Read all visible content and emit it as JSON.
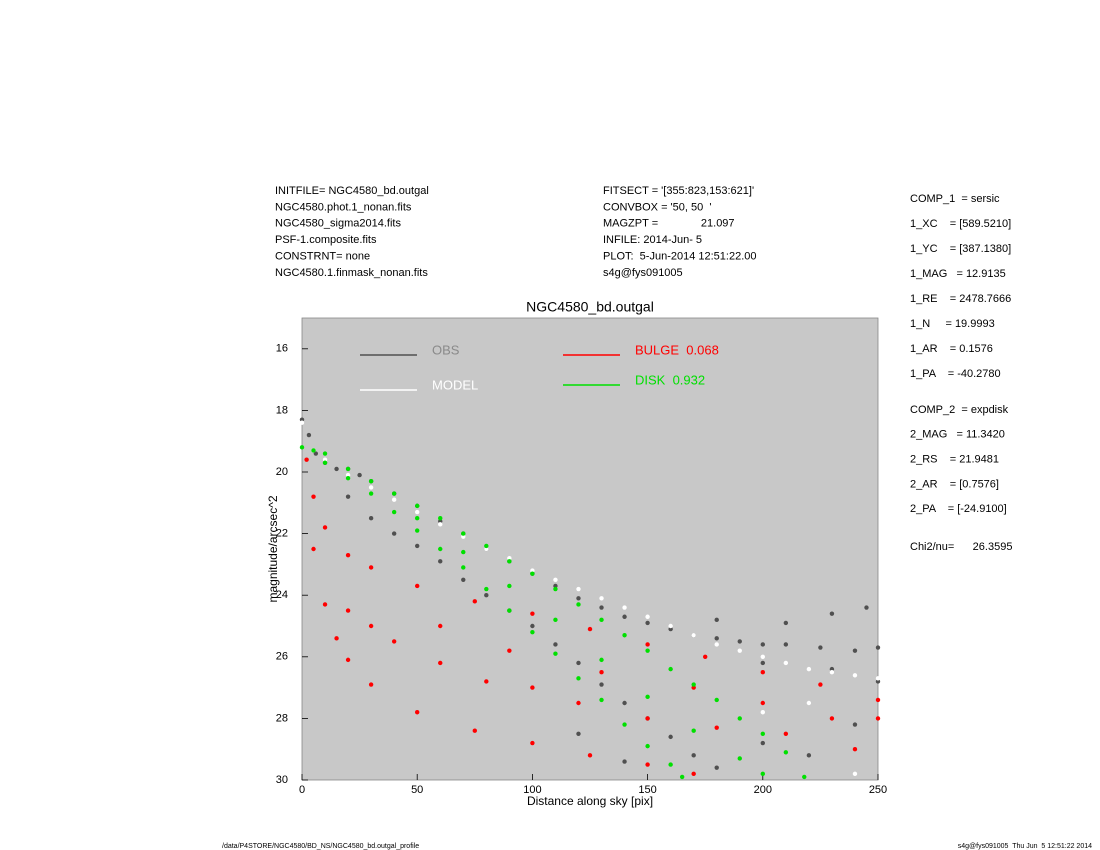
{
  "chart_data": {
    "type": "scatter",
    "title": "NGC4580_bd.outgal",
    "x_label": "Distance along sky [pix]",
    "y_label": "magnitude/arcsec^2",
    "xlim": [
      0,
      250
    ],
    "xticks": [
      0,
      50,
      100,
      150,
      200,
      250
    ],
    "ylim": [
      30,
      15
    ],
    "yticks": [
      16,
      18,
      20,
      22,
      24,
      26,
      28,
      30
    ],
    "background": "#c8c8c8",
    "header_left": [
      "INITFILE= NGC4580_bd.outgal",
      "NGC4580.phot.1_nonan.fits",
      "NGC4580_sigma2014.fits",
      "PSF-1.composite.fits",
      "CONSTRNT= none",
      "NGC4580.1.finmask_nonan.fits"
    ],
    "header_center": [
      "FITSECT = '[355:823,153:621]'",
      "CONVBOX = '50, 50  '",
      "MAGZPT =              21.097",
      "INFILE: 2014-Jun- 5",
      "PLOT:  5-Jun-2014 12:51:22.00",
      "s4g@fys091005"
    ],
    "params_1": [
      "COMP_1  = sersic",
      "1_XC    = [589.5210]",
      "1_YC    = [387.1380]",
      "1_MAG   = 12.9135",
      "1_RE    = 2478.7666",
      "1_N     = 19.9993",
      "1_AR    = 0.1576",
      "1_PA    = -40.2780"
    ],
    "params_2": [
      "COMP_2  = expdisk",
      "2_MAG   = 11.3420",
      "2_RS    = 21.9481",
      "2_AR    = [0.7576]",
      "2_PA    = [-24.9100]"
    ],
    "chi2": "Chi2/nu=      26.3595",
    "footer_left": "/data/P4STORE/NGC4580/BD_NS/NGC4580_bd.outgal_profile",
    "footer_right": "s4g@fys091005  Thu Jun  5 12:51:22 2014",
    "series": [
      {
        "name": "OBS",
        "color": "#505050",
        "legend_text_color": "#8a8a8a",
        "x": [
          0,
          3,
          6,
          10,
          15,
          20,
          25,
          30,
          40,
          50,
          60,
          70,
          80,
          90,
          100,
          110,
          120,
          130,
          140,
          150,
          160,
          170,
          180,
          190,
          200,
          210,
          225,
          240,
          250,
          180,
          210,
          230,
          245,
          200,
          230,
          250,
          20,
          30,
          40,
          50,
          60,
          70,
          80,
          90,
          100,
          110,
          120,
          130,
          140,
          150,
          160,
          170,
          180,
          120,
          140,
          200,
          220,
          240
        ],
        "y": [
          18.3,
          18.8,
          19.4,
          19.7,
          19.9,
          19.9,
          20.1,
          20.3,
          20.7,
          21.1,
          21.6,
          22.0,
          22.5,
          22.9,
          23.3,
          23.7,
          24.1,
          24.4,
          24.7,
          24.9,
          25.1,
          25.3,
          25.4,
          25.5,
          25.6,
          25.6,
          25.7,
          25.8,
          25.7,
          24.8,
          24.9,
          24.6,
          24.4,
          26.2,
          26.4,
          26.8,
          20.8,
          21.5,
          22.0,
          22.4,
          22.9,
          23.5,
          24.0,
          24.5,
          25.0,
          25.6,
          26.2,
          26.9,
          27.5,
          28.0,
          28.6,
          29.2,
          29.6,
          28.5,
          29.4,
          28.8,
          29.2,
          28.2
        ]
      },
      {
        "name": "MODEL",
        "color": "#ffffff",
        "legend_text_color": "#ffffff",
        "x": [
          0,
          5,
          10,
          20,
          30,
          40,
          50,
          60,
          70,
          80,
          90,
          100,
          110,
          120,
          130,
          140,
          150,
          160,
          170,
          180,
          190,
          200,
          210,
          220,
          230,
          240,
          250,
          220,
          240,
          200
        ],
        "y": [
          18.4,
          19.3,
          19.6,
          20.1,
          20.5,
          20.9,
          21.3,
          21.7,
          22.1,
          22.5,
          22.8,
          23.2,
          23.5,
          23.8,
          24.1,
          24.4,
          24.7,
          25.0,
          25.3,
          25.6,
          25.8,
          26.0,
          26.2,
          26.4,
          26.5,
          26.6,
          26.7,
          27.5,
          29.8,
          27.8
        ]
      },
      {
        "name": "BULGE  0.068",
        "color": "#ff0000",
        "legend_text_color": "#ff0000",
        "x": [
          2,
          5,
          10,
          20,
          30,
          50,
          75,
          100,
          125,
          150,
          175,
          200,
          225,
          250,
          5,
          10,
          15,
          20,
          30,
          50,
          75,
          100,
          125,
          150,
          170,
          20,
          40,
          60,
          80,
          100,
          120,
          150,
          180,
          210,
          240,
          250,
          30,
          60,
          90,
          130,
          170,
          200,
          230
        ],
        "y": [
          19.6,
          20.8,
          21.8,
          22.7,
          23.1,
          23.7,
          24.2,
          24.6,
          25.1,
          25.6,
          26.0,
          26.5,
          26.9,
          27.4,
          22.5,
          24.3,
          25.4,
          26.1,
          26.9,
          27.8,
          28.4,
          28.8,
          29.2,
          29.5,
          29.8,
          24.5,
          25.5,
          26.2,
          26.8,
          27.0,
          27.5,
          28.0,
          28.3,
          28.5,
          29.0,
          28.0,
          25.0,
          25.0,
          25.8,
          26.5,
          27.0,
          27.5,
          28.0
        ]
      },
      {
        "name": "DISK  0.932",
        "color": "#00e000",
        "legend_text_color": "#00e000",
        "x": [
          0,
          5,
          10,
          20,
          30,
          40,
          50,
          60,
          70,
          80,
          90,
          100,
          110,
          120,
          130,
          140,
          150,
          160,
          170,
          180,
          190,
          200,
          210,
          218,
          10,
          20,
          30,
          40,
          50,
          60,
          70,
          80,
          90,
          100,
          110,
          120,
          130,
          140,
          150,
          160,
          165,
          50,
          70,
          90,
          110,
          130,
          150,
          170,
          190,
          200
        ],
        "y": [
          19.2,
          19.3,
          19.4,
          19.9,
          20.3,
          20.7,
          21.1,
          21.5,
          22.0,
          22.4,
          22.9,
          23.3,
          23.8,
          24.3,
          24.8,
          25.3,
          25.8,
          26.4,
          26.9,
          27.4,
          28.0,
          28.5,
          29.1,
          29.9,
          19.7,
          20.2,
          20.7,
          21.3,
          21.9,
          22.5,
          23.1,
          23.8,
          24.5,
          25.2,
          25.9,
          26.7,
          27.4,
          28.2,
          28.9,
          29.5,
          29.9,
          21.5,
          22.6,
          23.7,
          24.8,
          26.1,
          27.3,
          28.4,
          29.3,
          29.8
        ]
      }
    ]
  }
}
